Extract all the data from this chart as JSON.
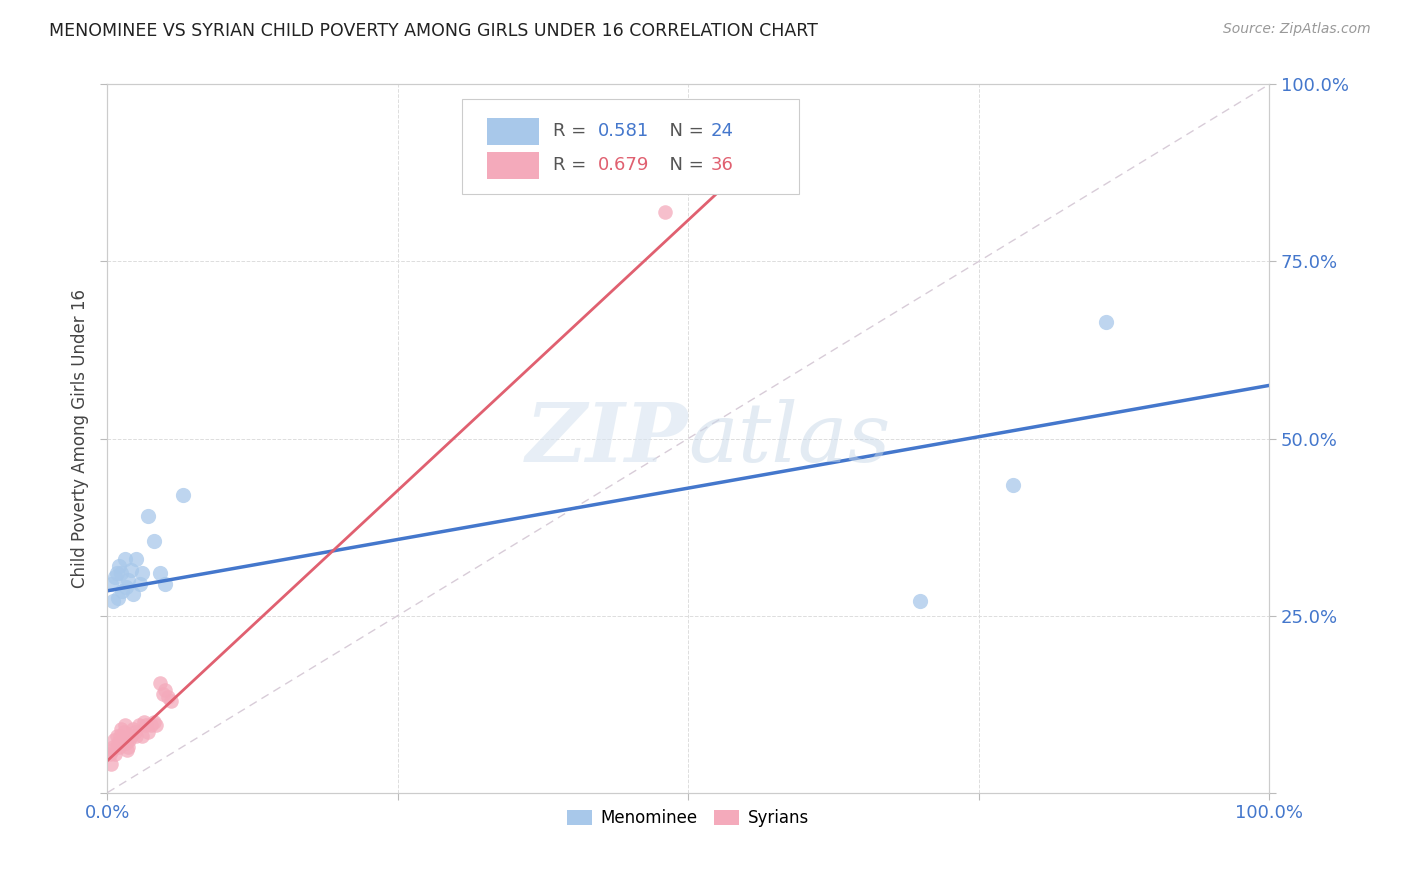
{
  "title": "MENOMINEE VS SYRIAN CHILD POVERTY AMONG GIRLS UNDER 16 CORRELATION CHART",
  "source": "Source: ZipAtlas.com",
  "ylabel": "Child Poverty Among Girls Under 16",
  "xlim": [
    0,
    1
  ],
  "ylim": [
    0,
    1
  ],
  "menominee_R": 0.581,
  "menominee_N": 24,
  "syrian_R": 0.679,
  "syrian_N": 36,
  "menominee_color": "#a8c8ea",
  "syrian_color": "#f4aabb",
  "menominee_line_color": "#4477cc",
  "syrian_line_color": "#e06070",
  "diagonal_color": "#d8ccd8",
  "watermark_color": "#d8e4f0",
  "background_color": "#ffffff",
  "grid_color": "#dddddd",
  "menominee_x": [
    0.003,
    0.005,
    0.007,
    0.008,
    0.009,
    0.01,
    0.012,
    0.013,
    0.015,
    0.016,
    0.018,
    0.02,
    0.022,
    0.025,
    0.028,
    0.03,
    0.035,
    0.04,
    0.045,
    0.05,
    0.065,
    0.7,
    0.78,
    0.86
  ],
  "menominee_y": [
    0.295,
    0.27,
    0.305,
    0.31,
    0.275,
    0.32,
    0.31,
    0.285,
    0.33,
    0.29,
    0.3,
    0.315,
    0.28,
    0.33,
    0.295,
    0.31,
    0.39,
    0.355,
    0.31,
    0.295,
    0.42,
    0.27,
    0.435,
    0.665
  ],
  "syrian_x": [
    0.002,
    0.003,
    0.004,
    0.005,
    0.006,
    0.007,
    0.008,
    0.009,
    0.01,
    0.011,
    0.012,
    0.013,
    0.014,
    0.015,
    0.016,
    0.017,
    0.018,
    0.019,
    0.02,
    0.022,
    0.024,
    0.025,
    0.027,
    0.03,
    0.032,
    0.033,
    0.035,
    0.038,
    0.04,
    0.042,
    0.045,
    0.048,
    0.05,
    0.052,
    0.055,
    0.48
  ],
  "syrian_y": [
    0.055,
    0.04,
    0.06,
    0.065,
    0.075,
    0.055,
    0.08,
    0.07,
    0.065,
    0.08,
    0.09,
    0.075,
    0.085,
    0.095,
    0.07,
    0.06,
    0.065,
    0.075,
    0.08,
    0.09,
    0.085,
    0.08,
    0.095,
    0.08,
    0.1,
    0.095,
    0.085,
    0.095,
    0.1,
    0.095,
    0.155,
    0.14,
    0.145,
    0.135,
    0.13,
    0.82
  ],
  "menominee_line_x0": 0.0,
  "menominee_line_x1": 1.0,
  "menominee_line_y0": 0.285,
  "menominee_line_y1": 0.575,
  "syrian_line_x0": 0.0,
  "syrian_line_x1": 0.56,
  "syrian_line_y0": 0.045,
  "syrian_line_y1": 0.9
}
